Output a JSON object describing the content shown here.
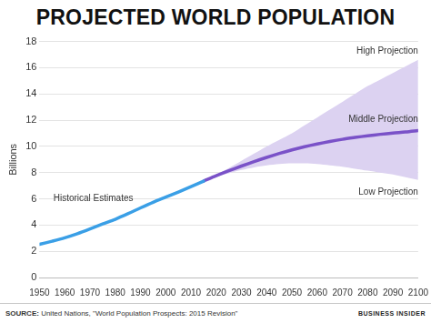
{
  "chart_data": {
    "type": "line",
    "title": "PROJECTED WORLD POPULATION",
    "y_label": "Billions",
    "source_label": "SOURCE:",
    "source": "United Nations, \"World Population Prospects: 2015 Revision\"",
    "credit": "BUSINESS INSIDER",
    "x": [
      1950,
      1955,
      1960,
      1965,
      1970,
      1975,
      1980,
      1985,
      1990,
      1995,
      2000,
      2005,
      2010,
      2015,
      2020,
      2025,
      2030,
      2035,
      2040,
      2045,
      2050,
      2055,
      2060,
      2065,
      2070,
      2075,
      2080,
      2085,
      2090,
      2095,
      2100
    ],
    "series": [
      {
        "name": "Historical Estimates",
        "color": "#3a9fe6",
        "type": "line",
        "values": [
          2.53,
          2.77,
          3.03,
          3.34,
          3.7,
          4.08,
          4.44,
          4.86,
          5.31,
          5.74,
          6.13,
          6.52,
          6.93,
          7.35,
          null,
          null,
          null,
          null,
          null,
          null,
          null,
          null,
          null,
          null,
          null,
          null,
          null,
          null,
          null,
          null,
          null
        ]
      },
      {
        "name": "Middle Projection",
        "color": "#7a52c8",
        "type": "line",
        "values": [
          null,
          null,
          null,
          null,
          null,
          null,
          null,
          null,
          null,
          null,
          null,
          null,
          null,
          7.35,
          7.76,
          8.14,
          8.5,
          8.84,
          9.16,
          9.46,
          9.73,
          9.97,
          10.18,
          10.37,
          10.54,
          10.68,
          10.81,
          10.92,
          11.02,
          11.1,
          11.21
        ]
      },
      {
        "name": "High Projection",
        "color": "#dcd2f1",
        "type": "area",
        "values": [
          null,
          null,
          null,
          null,
          null,
          null,
          null,
          null,
          null,
          null,
          null,
          null,
          null,
          7.35,
          7.85,
          8.35,
          8.9,
          9.45,
          10.0,
          10.5,
          11.0,
          11.6,
          12.2,
          12.8,
          13.4,
          14.0,
          14.6,
          15.1,
          15.6,
          16.1,
          16.6
        ]
      },
      {
        "name": "Low Projection",
        "color": "#dcd2f1",
        "type": "area",
        "values": [
          null,
          null,
          null,
          null,
          null,
          null,
          null,
          null,
          null,
          null,
          null,
          null,
          null,
          7.35,
          7.7,
          7.95,
          8.2,
          8.4,
          8.55,
          8.65,
          8.7,
          8.7,
          8.65,
          8.55,
          8.45,
          8.3,
          8.15,
          8.0,
          7.85,
          7.65,
          7.45
        ]
      }
    ],
    "xlim": [
      1950,
      2100
    ],
    "xticks": [
      1950,
      1960,
      1970,
      1980,
      1990,
      2000,
      2010,
      2020,
      2030,
      2040,
      2050,
      2060,
      2070,
      2080,
      2090,
      2100
    ],
    "ylim": [
      0,
      18
    ],
    "yticks": [
      0,
      2,
      4,
      6,
      8,
      10,
      12,
      14,
      16,
      18
    ],
    "grid": true
  }
}
